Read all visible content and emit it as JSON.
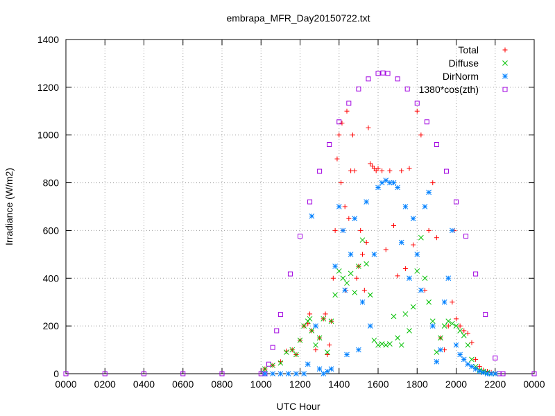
{
  "chart_data": {
    "type": "scatter",
    "title": "embrapa_MFR_Day20150722.txt",
    "xlabel": "UTC Hour",
    "ylabel": "Irradiance (W/m2)",
    "xlim": [
      0,
      24
    ],
    "ylim": [
      0,
      1400
    ],
    "x_ticks": [
      {
        "value": 0,
        "label": "0000"
      },
      {
        "value": 2,
        "label": "0200"
      },
      {
        "value": 4,
        "label": "0400"
      },
      {
        "value": 6,
        "label": "0600"
      },
      {
        "value": 8,
        "label": "0800"
      },
      {
        "value": 10,
        "label": "1000"
      },
      {
        "value": 12,
        "label": "1200"
      },
      {
        "value": 14,
        "label": "1400"
      },
      {
        "value": 16,
        "label": "1600"
      },
      {
        "value": 18,
        "label": "1800"
      },
      {
        "value": 20,
        "label": "2000"
      },
      {
        "value": 22,
        "label": "2200"
      },
      {
        "value": 24,
        "label": "0000"
      }
    ],
    "y_ticks": [
      {
        "value": 0,
        "label": "0"
      },
      {
        "value": 200,
        "label": "200"
      },
      {
        "value": 400,
        "label": "400"
      },
      {
        "value": 600,
        "label": "600"
      },
      {
        "value": 800,
        "label": "800"
      },
      {
        "value": 1000,
        "label": "1000"
      },
      {
        "value": 1200,
        "label": "1200"
      },
      {
        "value": 1400,
        "label": "1400"
      }
    ],
    "grid": true,
    "legend_position": "top-right",
    "series": [
      {
        "name": "Total",
        "marker": "plus",
        "color": "#ff0000",
        "x": [
          10.2,
          10.6,
          11.0,
          11.3,
          11.6,
          11.8,
          12.0,
          12.2,
          12.4,
          12.5,
          12.6,
          12.8,
          13.0,
          13.2,
          13.3,
          13.4,
          13.5,
          13.6,
          13.7,
          13.8,
          13.9,
          14.0,
          14.1,
          14.15,
          14.2,
          14.3,
          14.35,
          14.4,
          14.5,
          14.6,
          14.7,
          14.8,
          14.9,
          15.0,
          15.1,
          15.2,
          15.3,
          15.4,
          15.5,
          15.6,
          15.7,
          15.8,
          15.9,
          16.0,
          16.2,
          16.4,
          16.6,
          16.8,
          17.0,
          17.2,
          17.4,
          17.6,
          17.8,
          18.0,
          18.2,
          18.4,
          18.6,
          18.8,
          19.0,
          19.2,
          19.4,
          19.6,
          19.8,
          19.9,
          20.0,
          20.2,
          20.4,
          20.6,
          20.8,
          21.0,
          21.2,
          21.4,
          21.6,
          21.8,
          22.0
        ],
        "y": [
          20,
          35,
          50,
          95,
          100,
          80,
          140,
          200,
          210,
          250,
          180,
          100,
          150,
          230,
          250,
          80,
          120,
          220,
          400,
          600,
          900,
          1000,
          800,
          1050,
          600,
          700,
          350,
          1100,
          650,
          850,
          1000,
          850,
          400,
          450,
          600,
          500,
          350,
          550,
          1030,
          880,
          870,
          860,
          850,
          860,
          850,
          520,
          850,
          620,
          410,
          850,
          440,
          860,
          540,
          1100,
          1000,
          350,
          600,
          800,
          570,
          150,
          100,
          200,
          300,
          600,
          230,
          200,
          180,
          170,
          130,
          60,
          30,
          15,
          10,
          5,
          0
        ]
      },
      {
        "name": "Diffuse",
        "marker": "cross",
        "color": "#00c000",
        "x": [
          10.2,
          10.6,
          11.0,
          11.3,
          11.6,
          11.8,
          12.0,
          12.2,
          12.4,
          12.5,
          12.6,
          12.8,
          13.0,
          13.2,
          13.4,
          13.6,
          13.8,
          14.0,
          14.2,
          14.4,
          14.6,
          14.8,
          15.0,
          15.2,
          15.4,
          15.6,
          15.8,
          16.0,
          16.2,
          16.4,
          16.6,
          16.8,
          17.0,
          17.2,
          17.4,
          17.6,
          17.8,
          18.0,
          18.2,
          18.4,
          18.6,
          18.8,
          19.0,
          19.2,
          19.4,
          19.6,
          19.8,
          20.0,
          20.2,
          20.4,
          20.6,
          20.8,
          21.0,
          21.2,
          21.4,
          21.6,
          21.8,
          22.0
        ],
        "y": [
          20,
          35,
          45,
          90,
          100,
          80,
          140,
          200,
          220,
          230,
          180,
          120,
          150,
          230,
          90,
          220,
          330,
          430,
          400,
          380,
          420,
          340,
          450,
          560,
          460,
          330,
          140,
          120,
          125,
          120,
          125,
          240,
          150,
          120,
          250,
          180,
          280,
          430,
          570,
          400,
          300,
          220,
          90,
          150,
          200,
          220,
          210,
          200,
          180,
          160,
          120,
          60,
          30,
          15,
          10,
          5,
          0,
          0
        ]
      },
      {
        "name": "DirNorm",
        "marker": "star",
        "color": "#0080ff",
        "x": [
          10.2,
          10.6,
          11.0,
          11.4,
          11.8,
          12.2,
          12.4,
          12.6,
          12.8,
          13.0,
          13.2,
          13.4,
          13.6,
          13.8,
          14.0,
          14.2,
          14.3,
          14.4,
          14.6,
          14.8,
          15.0,
          15.2,
          15.4,
          15.6,
          15.8,
          16.0,
          16.2,
          16.4,
          16.6,
          16.8,
          17.0,
          17.2,
          17.4,
          17.6,
          17.8,
          18.0,
          18.2,
          18.4,
          18.6,
          18.8,
          19.0,
          19.2,
          19.4,
          19.6,
          19.8,
          20.0,
          20.2,
          20.4,
          20.6,
          20.8,
          21.0,
          21.2,
          21.4,
          21.6,
          21.8,
          22.0
        ],
        "y": [
          0,
          0,
          0,
          0,
          0,
          0,
          40,
          660,
          200,
          20,
          0,
          10,
          20,
          450,
          700,
          600,
          350,
          80,
          500,
          650,
          100,
          300,
          720,
          200,
          500,
          780,
          800,
          810,
          800,
          800,
          780,
          550,
          700,
          400,
          650,
          500,
          350,
          700,
          760,
          200,
          50,
          100,
          300,
          400,
          600,
          120,
          80,
          60,
          40,
          30,
          20,
          10,
          5,
          0,
          0,
          0
        ]
      },
      {
        "name": "1380*cos(zth)",
        "marker": "square",
        "color": "#a000e0",
        "x": [
          0,
          2,
          4,
          6,
          8,
          10,
          10.2,
          10.4,
          10.6,
          10.8,
          11,
          11.5,
          12,
          12.5,
          13,
          13.5,
          14,
          14.5,
          15,
          15.5,
          16,
          16.25,
          16.5,
          17,
          17.5,
          18,
          18.5,
          19,
          19.5,
          20,
          20.5,
          21,
          21.5,
          22,
          22.2,
          22.4,
          24
        ],
        "y": [
          0,
          0,
          0,
          0,
          0,
          0,
          0,
          40,
          110,
          180,
          248,
          418,
          576,
          720,
          848,
          960,
          1055,
          1133,
          1193,
          1235,
          1258,
          1260,
          1258,
          1235,
          1193,
          1133,
          1055,
          960,
          848,
          720,
          576,
          418,
          248,
          66,
          0,
          0,
          0
        ]
      }
    ]
  }
}
